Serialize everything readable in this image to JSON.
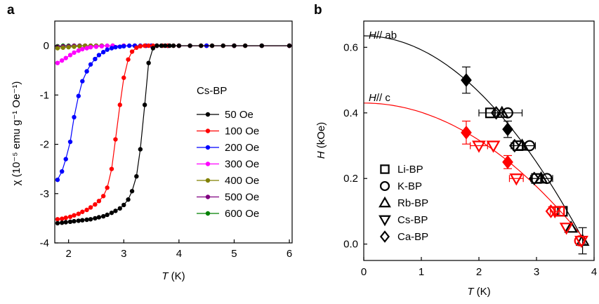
{
  "panels": {
    "a": {
      "letter": "a"
    },
    "b": {
      "letter": "b"
    }
  },
  "chart_data": [
    {
      "type": "line",
      "panel": "a",
      "title": "",
      "xlabel_italic": "T",
      "xlabel_rest": " (K)",
      "ylabel": "χ (10⁻⁵ emu g⁻¹ Oe⁻¹)",
      "xlim": [
        1.75,
        6.05
      ],
      "ylim": [
        -4,
        0.5
      ],
      "xticks": [
        2,
        3,
        4,
        5,
        6
      ],
      "yticks": [
        -4,
        -3,
        -2,
        -1,
        0
      ],
      "legend_title": "Cs-BP",
      "legend_position": "center-right",
      "grid": false,
      "series": [
        {
          "name": "50 Oe",
          "color": "#000000",
          "x": [
            1.8,
            1.88,
            1.95,
            2.03,
            2.1,
            2.18,
            2.25,
            2.33,
            2.4,
            2.48,
            2.55,
            2.63,
            2.7,
            2.78,
            2.85,
            2.93,
            3.0,
            3.08,
            3.15,
            3.23,
            3.3,
            3.38,
            3.45,
            3.53,
            3.6,
            3.68,
            3.75,
            3.83,
            3.9,
            4.0,
            4.2,
            4.4,
            4.6,
            4.8,
            5.0,
            5.2,
            5.5,
            6.0
          ],
          "y": [
            -3.6,
            -3.59,
            -3.58,
            -3.57,
            -3.56,
            -3.55,
            -3.54,
            -3.53,
            -3.52,
            -3.5,
            -3.48,
            -3.46,
            -3.43,
            -3.39,
            -3.35,
            -3.3,
            -3.23,
            -3.12,
            -2.95,
            -2.65,
            -2.1,
            -1.2,
            -0.35,
            -0.05,
            0,
            0,
            0,
            0,
            0,
            0,
            0,
            0,
            0,
            0,
            0,
            0,
            0,
            0
          ]
        },
        {
          "name": "100 Oe",
          "color": "#ff0000",
          "x": [
            1.8,
            1.88,
            1.95,
            2.03,
            2.1,
            2.18,
            2.25,
            2.33,
            2.4,
            2.48,
            2.55,
            2.63,
            2.7,
            2.78,
            2.85,
            2.93,
            3.0,
            3.08,
            3.15,
            3.23,
            3.3,
            3.38,
            3.45,
            3.53,
            3.6,
            3.7,
            3.8,
            3.9,
            4.0,
            4.2,
            4.4,
            4.6,
            4.8,
            5.0,
            5.2,
            5.5,
            6.0
          ],
          "y": [
            -3.52,
            -3.51,
            -3.49,
            -3.47,
            -3.44,
            -3.41,
            -3.37,
            -3.33,
            -3.28,
            -3.22,
            -3.15,
            -3.05,
            -2.88,
            -2.5,
            -1.9,
            -1.2,
            -0.65,
            -0.28,
            -0.12,
            -0.04,
            -0.01,
            0,
            0,
            0,
            0,
            0,
            0,
            0,
            0,
            0,
            0,
            0,
            0,
            0,
            0,
            0,
            0
          ]
        },
        {
          "name": "200 Oe",
          "color": "#0000ff",
          "x": [
            1.8,
            1.88,
            1.95,
            2.03,
            2.1,
            2.18,
            2.25,
            2.33,
            2.4,
            2.48,
            2.55,
            2.63,
            2.7,
            2.78,
            2.85,
            2.93,
            3.0,
            3.1,
            3.2,
            3.3,
            3.4,
            3.5,
            3.6,
            3.8,
            4.0,
            4.2,
            4.5,
            5.0,
            5.5,
            6.0
          ],
          "y": [
            -2.72,
            -2.55,
            -2.3,
            -1.95,
            -1.45,
            -1.02,
            -0.72,
            -0.52,
            -0.38,
            -0.27,
            -0.19,
            -0.13,
            -0.08,
            -0.05,
            -0.03,
            -0.02,
            -0.01,
            0,
            0,
            0,
            0,
            0,
            0,
            0,
            0,
            0,
            0,
            0,
            0,
            0
          ]
        },
        {
          "name": "300 Oe",
          "color": "#ff00ff",
          "x": [
            1.8,
            1.88,
            1.95,
            2.03,
            2.1,
            2.18,
            2.25,
            2.33,
            2.4,
            2.5,
            2.6,
            2.7,
            2.8,
            3.0,
            3.2,
            3.4,
            3.6,
            3.8,
            4.0,
            4.5,
            5.0,
            6.0
          ],
          "y": [
            -0.35,
            -0.3,
            -0.25,
            -0.19,
            -0.14,
            -0.1,
            -0.07,
            -0.05,
            -0.03,
            -0.02,
            -0.01,
            0,
            0,
            0,
            0,
            0,
            0,
            0,
            0,
            0,
            0,
            0
          ]
        },
        {
          "name": "400 Oe",
          "color": "#808000",
          "x": [
            1.8,
            1.9,
            2.0,
            2.1,
            2.2,
            2.3,
            2.4,
            2.5,
            2.6,
            2.8,
            3.0,
            3.2,
            3.4,
            3.6,
            3.8,
            4.0,
            4.5,
            5.0,
            6.0
          ],
          "y": [
            -0.05,
            -0.04,
            -0.03,
            -0.02,
            -0.01,
            0,
            0,
            0,
            0,
            0,
            0,
            0,
            0,
            0,
            0,
            0,
            0,
            0,
            0
          ]
        },
        {
          "name": "500 Oe",
          "color": "#800080",
          "x": [
            1.8,
            1.9,
            2.0,
            2.1,
            2.2,
            2.3,
            2.4,
            2.5,
            2.6,
            2.8,
            3.0,
            3.2,
            3.4,
            3.6,
            3.8,
            4.0,
            4.5,
            5.0,
            6.0
          ],
          "y": [
            -0.02,
            -0.015,
            -0.01,
            0,
            0,
            0,
            0,
            0,
            0,
            0,
            0,
            0,
            0,
            0,
            0,
            0,
            0,
            0,
            0
          ]
        },
        {
          "name": "600 Oe",
          "color": "#008000",
          "x": [
            1.8,
            1.9,
            2.0,
            2.1,
            2.2,
            2.3,
            2.4,
            2.5,
            2.6,
            2.8,
            3.0,
            3.2,
            3.4,
            3.6,
            3.8,
            4.0,
            4.5,
            5.0,
            5.5,
            6.0
          ],
          "y": [
            -0.01,
            0,
            0,
            0,
            0,
            0,
            0,
            0,
            0,
            0,
            0,
            0,
            0,
            0,
            0,
            0,
            0,
            0,
            0,
            0
          ]
        }
      ]
    },
    {
      "type": "scatter",
      "panel": "b",
      "title": "",
      "xlabel_italic": "T",
      "xlabel_rest": " (K)",
      "ylabel_italic": "H",
      "ylabel_rest": " (kOe)",
      "xlim": [
        0,
        4
      ],
      "ylim": [
        -0.05,
        0.68
      ],
      "xticks": [
        0,
        1,
        2,
        3,
        4
      ],
      "yticks": [
        0.0,
        0.2,
        0.4,
        0.6
      ],
      "ytick_labels": [
        "0.0",
        "0.2",
        "0.4",
        "0.6"
      ],
      "legend_position": "lower-left",
      "grid": false,
      "curves": [
        {
          "label_italic": "H",
          "label_rest": "// ab",
          "color": "#000000",
          "H0": 0.635,
          "Tc": 3.85
        },
        {
          "label_italic": "H",
          "label_rest": "// c",
          "color": "#ff0000",
          "H0": 0.43,
          "Tc": 3.9
        }
      ],
      "legend": [
        {
          "label": "Li-BP",
          "marker": "square"
        },
        {
          "label": "K-BP",
          "marker": "circle"
        },
        {
          "label": "Rb-BP",
          "marker": "triangle-up"
        },
        {
          "label": "Cs-BP",
          "marker": "triangle-down"
        },
        {
          "label": "Ca-BP",
          "marker": "diamond"
        }
      ],
      "points": [
        {
          "marker": "diamond",
          "color": "#000000",
          "filled": true,
          "x": 1.78,
          "y": 0.5,
          "yerr": 0.04
        },
        {
          "marker": "diamond",
          "color": "#000000",
          "filled": true,
          "x": 2.5,
          "y": 0.35,
          "yerr": 0.025
        },
        {
          "marker": "diamond",
          "color": "#ff0000",
          "filled": true,
          "x": 1.78,
          "y": 0.34,
          "yerr": 0.035
        },
        {
          "marker": "diamond",
          "color": "#ff0000",
          "filled": true,
          "x": 2.5,
          "y": 0.25,
          "yerr": 0.02
        },
        {
          "marker": "square",
          "color": "#000000",
          "filled": false,
          "x": 2.2,
          "y": 0.4,
          "xerr": 0.2
        },
        {
          "marker": "circle",
          "color": "#000000",
          "filled": false,
          "x": 2.5,
          "y": 0.4,
          "xerr": 0.25
        },
        {
          "marker": "diamond",
          "color": "#000000",
          "filled": false,
          "x": 2.3,
          "y": 0.4
        },
        {
          "marker": "triangle-up",
          "color": "#000000",
          "filled": false,
          "x": 2.4,
          "y": 0.4
        },
        {
          "marker": "square",
          "color": "#000000",
          "filled": false,
          "x": 2.68,
          "y": 0.3,
          "xerr": 0.12
        },
        {
          "marker": "circle",
          "color": "#000000",
          "filled": false,
          "x": 2.88,
          "y": 0.3,
          "xerr": 0.1
        },
        {
          "marker": "diamond",
          "color": "#000000",
          "filled": false,
          "x": 2.62,
          "y": 0.3
        },
        {
          "marker": "triangle-up",
          "color": "#000000",
          "filled": false,
          "x": 2.75,
          "y": 0.3
        },
        {
          "marker": "square",
          "color": "#000000",
          "filled": false,
          "x": 3.0,
          "y": 0.2,
          "xerr": 0.1
        },
        {
          "marker": "circle",
          "color": "#000000",
          "filled": false,
          "x": 3.18,
          "y": 0.2,
          "xerr": 0.1
        },
        {
          "marker": "diamond",
          "color": "#000000",
          "filled": false,
          "x": 2.96,
          "y": 0.2
        },
        {
          "marker": "triangle-up",
          "color": "#000000",
          "filled": false,
          "x": 3.08,
          "y": 0.2
        },
        {
          "marker": "square",
          "color": "#000000",
          "filled": false,
          "x": 3.45,
          "y": 0.1
        },
        {
          "marker": "triangle-up",
          "color": "#000000",
          "filled": false,
          "x": 3.6,
          "y": 0.05
        },
        {
          "marker": "triangle-up",
          "color": "#000000",
          "filled": false,
          "x": 3.8,
          "y": 0.01,
          "yerr": 0.04
        },
        {
          "marker": "triangle-down",
          "color": "#ff0000",
          "filled": false,
          "x": 2.0,
          "y": 0.3,
          "xerr": 0.15
        },
        {
          "marker": "triangle-down",
          "color": "#ff0000",
          "filled": false,
          "x": 2.25,
          "y": 0.3
        },
        {
          "marker": "triangle-down",
          "color": "#ff0000",
          "filled": false,
          "x": 2.65,
          "y": 0.2,
          "xerr": 0.12
        },
        {
          "marker": "triangle-down",
          "color": "#ff0000",
          "filled": false,
          "x": 3.32,
          "y": 0.1,
          "xerr": 0.08
        },
        {
          "marker": "triangle-down",
          "color": "#ff0000",
          "filled": false,
          "x": 3.52,
          "y": 0.05
        },
        {
          "marker": "triangle-down",
          "color": "#ff0000",
          "filled": false,
          "x": 3.78,
          "y": 0.01
        },
        {
          "marker": "square",
          "color": "#ff0000",
          "filled": false,
          "x": 3.4,
          "y": 0.1
        },
        {
          "marker": "circle",
          "color": "#ff0000",
          "filled": false,
          "x": 3.75,
          "y": 0.01
        },
        {
          "marker": "diamond",
          "color": "#ff0000",
          "filled": false,
          "x": 3.25,
          "y": 0.1
        }
      ]
    }
  ]
}
